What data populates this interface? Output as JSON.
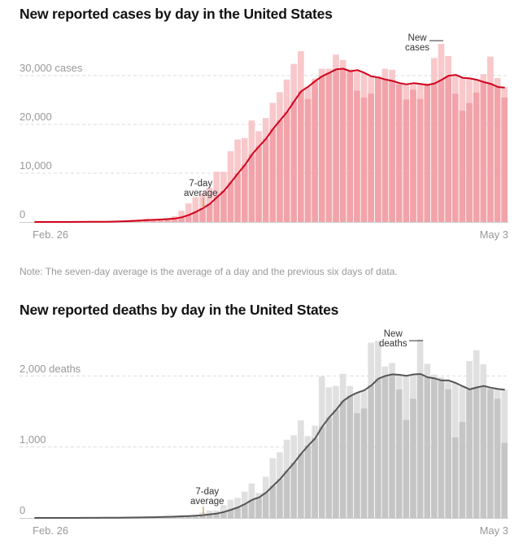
{
  "note": "Note: The seven-day average is the average of a day and the previous six days of data.",
  "chart_data": [
    {
      "type": "bar",
      "title": "New reported cases by day in the United States",
      "x_start_label": "Feb. 26",
      "x_end_label": "May 3",
      "y_ticks": [
        {
          "value": 0,
          "label": "0"
        },
        {
          "value": 10000,
          "label": "10,000"
        },
        {
          "value": 20000,
          "label": "20,000"
        },
        {
          "value": 30000,
          "label": "30,000 cases"
        }
      ],
      "ylim": [
        0,
        37000
      ],
      "grid": true,
      "annotations": {
        "average": "7-day\naverage",
        "bars": "New\ncases"
      },
      "overlay": "7-day average line",
      "colors": {
        "bar": "#f2a3aa",
        "bar_light": "#f8c8cb",
        "line": "#d0021b"
      },
      "values": [
        0,
        10,
        5,
        10,
        10,
        20,
        30,
        60,
        60,
        70,
        110,
        170,
        250,
        360,
        480,
        500,
        700,
        550,
        700,
        800,
        1200,
        2300,
        3800,
        5100,
        5800,
        7000,
        10300,
        10300,
        14500,
        16900,
        17200,
        20800,
        18600,
        21300,
        24400,
        26600,
        29200,
        32400,
        35000,
        25200,
        29400,
        31400,
        31400,
        34300,
        33200,
        31300,
        26900,
        25500,
        26300,
        29800,
        31400,
        31200,
        28200,
        25100,
        27100,
        25200,
        28400,
        33600,
        36500,
        34000,
        26300,
        22800,
        24400,
        26500,
        30300,
        33900,
        29500,
        25500
      ]
    },
    {
      "type": "bar",
      "title": "New reported deaths by day in the United States",
      "x_start_label": "Feb. 26",
      "x_end_label": "May 3",
      "y_ticks": [
        {
          "value": 0,
          "label": "0"
        },
        {
          "value": 1000,
          "label": "1,000"
        },
        {
          "value": 2000,
          "label": "2,000 deaths"
        }
      ],
      "ylim": [
        0,
        2700
      ],
      "grid": true,
      "annotations": {
        "average": "7-day\naverage",
        "bars": "New\ndeaths"
      },
      "overlay": "7-day average line",
      "colors": {
        "bar": "#c5c5c5",
        "bar_light": "#e0e0e0",
        "line": "#555555"
      },
      "values": [
        0,
        0,
        0,
        1,
        1,
        0,
        2,
        2,
        1,
        3,
        5,
        4,
        7,
        8,
        10,
        12,
        15,
        18,
        22,
        25,
        30,
        35,
        40,
        46,
        76,
        103,
        103,
        180,
        256,
        282,
        370,
        485,
        351,
        580,
        840,
        924,
        1103,
        1164,
        1374,
        1153,
        1298,
        1992,
        1840,
        1859,
        2030,
        1859,
        1477,
        1542,
        2469,
        2496,
        2133,
        2183,
        1809,
        1381,
        1679,
        2515,
        2172,
        2019,
        1981,
        1813,
        1134,
        1351,
        2210,
        2363,
        2164,
        1813,
        1679,
        1057
      ]
    }
  ]
}
